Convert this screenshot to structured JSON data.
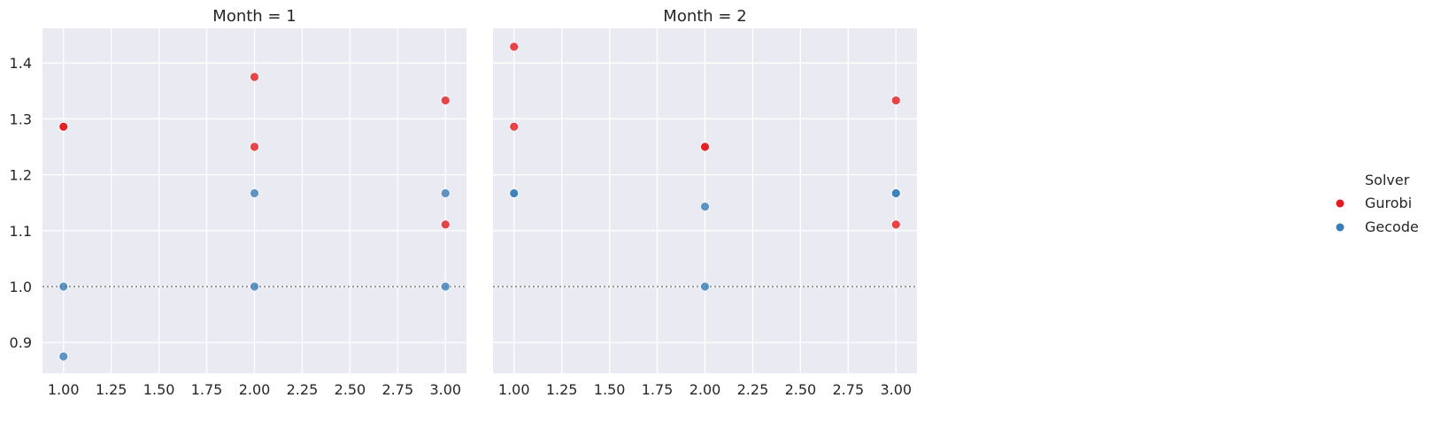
{
  "chart_data": {
    "type": "scatter",
    "facet_variable": "Month",
    "legend": {
      "title": "Solver",
      "placement": "right",
      "entries": [
        {
          "name": "Gurobi",
          "color": "#e41a1c"
        },
        {
          "name": "Gecode",
          "color": "#377eb8"
        }
      ]
    },
    "reference_line": {
      "y": 1.0,
      "style": "dotted",
      "color": "#808080"
    },
    "xlim": [
      0.89,
      3.11
    ],
    "ylim": [
      0.845,
      1.462
    ],
    "x_ticks": [
      "1.00",
      "1.25",
      "1.50",
      "1.75",
      "2.00",
      "2.25",
      "2.50",
      "2.75",
      "3.00"
    ],
    "y_ticks": [
      "0.9",
      "1.0",
      "1.1",
      "1.2",
      "1.3",
      "1.4"
    ],
    "grid": true,
    "panels": [
      {
        "title": "Month = 1",
        "series": [
          {
            "name": "Gurobi",
            "points": [
              [
                1.0,
                1.286
              ],
              [
                1.0,
                1.286
              ],
              [
                2.0,
                1.375
              ],
              [
                2.0,
                1.25
              ],
              [
                3.0,
                1.333
              ],
              [
                3.0,
                1.111
              ]
            ]
          },
          {
            "name": "Gecode",
            "points": [
              [
                1.0,
                1.0
              ],
              [
                1.0,
                0.875
              ],
              [
                2.0,
                1.167
              ],
              [
                2.0,
                1.0
              ],
              [
                3.0,
                1.167
              ],
              [
                3.0,
                1.0
              ]
            ]
          }
        ]
      },
      {
        "title": "Month = 2",
        "series": [
          {
            "name": "Gurobi",
            "points": [
              [
                1.0,
                1.429
              ],
              [
                1.0,
                1.286
              ],
              [
                2.0,
                1.25
              ],
              [
                2.0,
                1.25
              ],
              [
                3.0,
                1.333
              ],
              [
                3.0,
                1.111
              ]
            ]
          },
          {
            "name": "Gecode",
            "points": [
              [
                1.0,
                1.167
              ],
              [
                1.0,
                1.167
              ],
              [
                2.0,
                1.143
              ],
              [
                2.0,
                1.0
              ],
              [
                3.0,
                1.167
              ],
              [
                3.0,
                1.167
              ]
            ]
          }
        ]
      }
    ]
  }
}
